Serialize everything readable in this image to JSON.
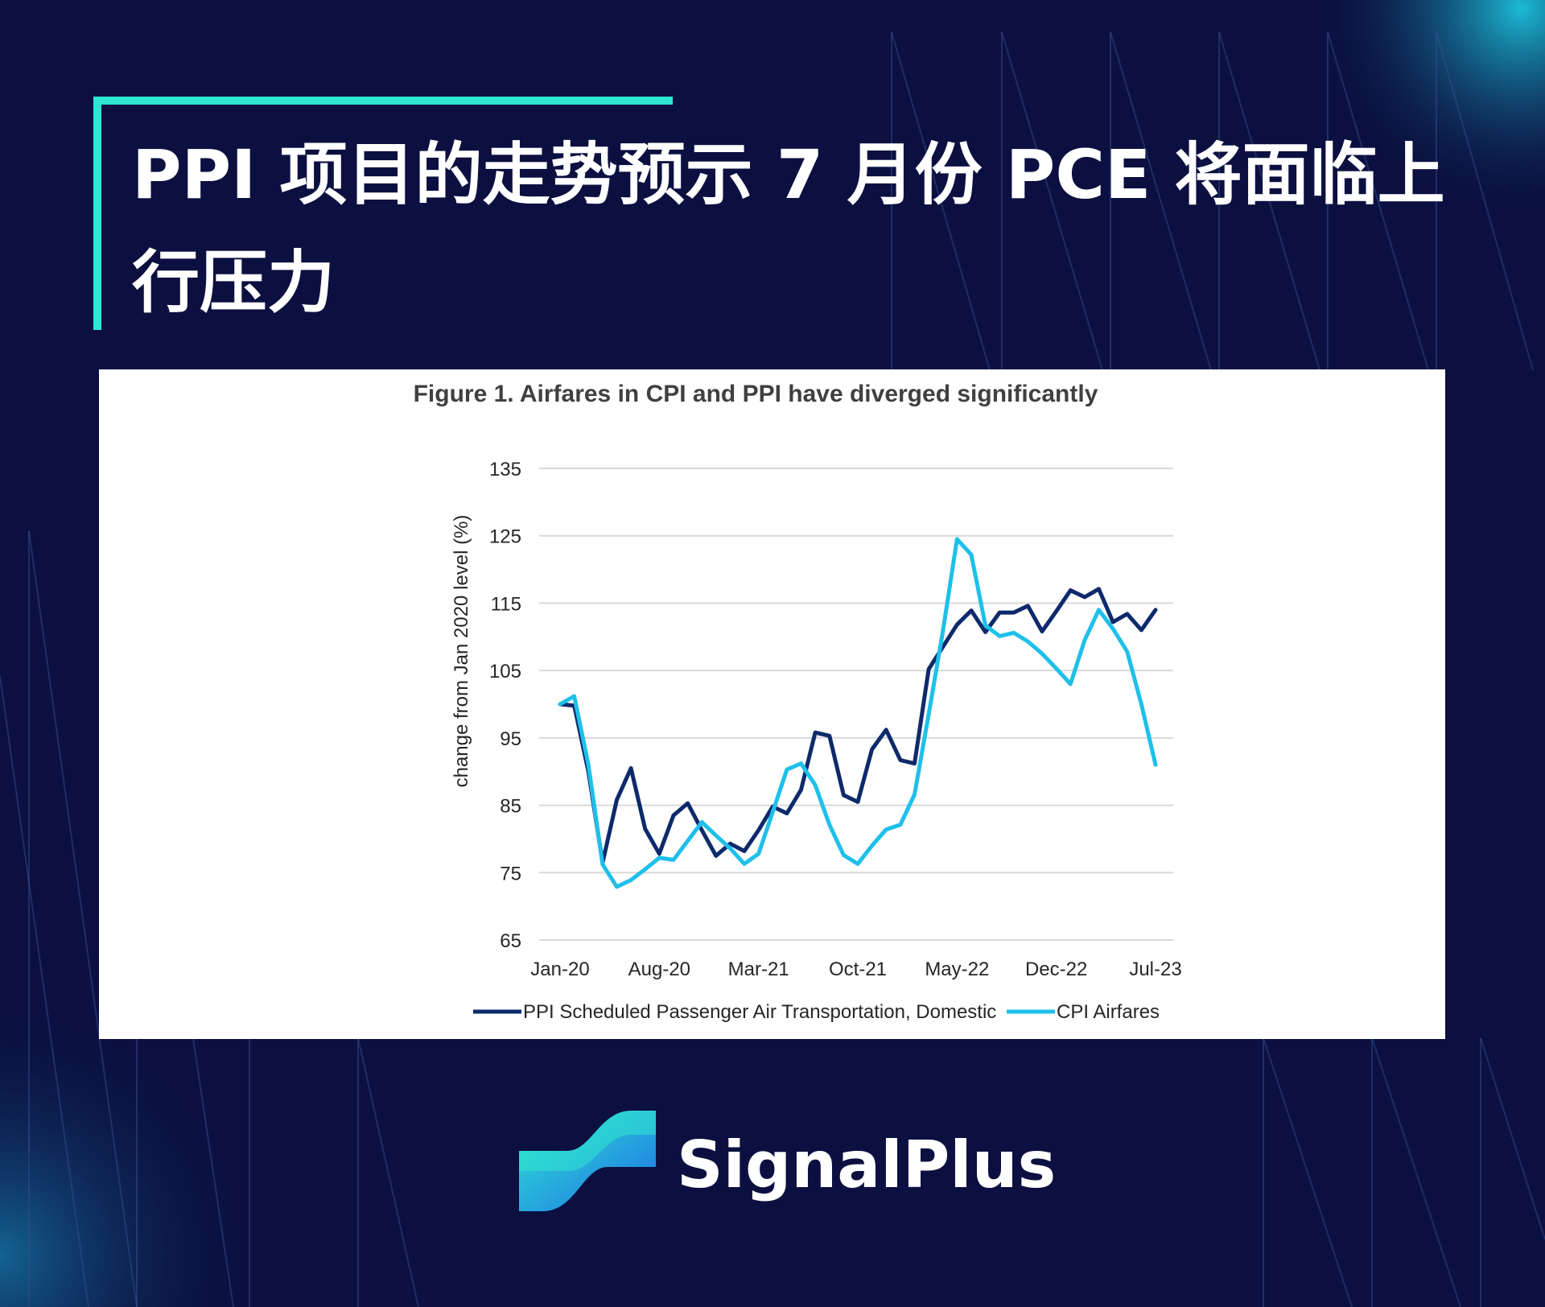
{
  "headline": {
    "text": "PPI 项目的走势预示 7 月份 PCE 将面临上行压力"
  },
  "brand": {
    "name": "SignalPlus",
    "accent_color": "#2ee6d2",
    "background_color": "#0b1040"
  },
  "chart_data": {
    "type": "line",
    "title": "Figure 1. Airfares in CPI and PPI have diverged significantly",
    "ylabel": "change from Jan 2020 level (%)",
    "xlabel": "",
    "ylim": [
      65,
      135
    ],
    "yticks": [
      "135",
      "125",
      "115",
      "105",
      "95",
      "85",
      "75",
      "65"
    ],
    "ytick_values": [
      135,
      125,
      115,
      105,
      95,
      85,
      75,
      65
    ],
    "xtick_labels": [
      "Jan-20",
      "Aug-20",
      "Mar-21",
      "Oct-21",
      "May-22",
      "Dec-22",
      "Jul-23"
    ],
    "xtick_indices": [
      0,
      7,
      14,
      21,
      28,
      35,
      42
    ],
    "x": [
      "2020-01",
      "2020-02",
      "2020-03",
      "2020-04",
      "2020-05",
      "2020-06",
      "2020-07",
      "2020-08",
      "2020-09",
      "2020-10",
      "2020-11",
      "2020-12",
      "2021-01",
      "2021-02",
      "2021-03",
      "2021-04",
      "2021-05",
      "2021-06",
      "2021-07",
      "2021-08",
      "2021-09",
      "2021-10",
      "2021-11",
      "2021-12",
      "2022-01",
      "2022-02",
      "2022-03",
      "2022-04",
      "2022-05",
      "2022-06",
      "2022-07",
      "2022-08",
      "2022-09",
      "2022-10",
      "2022-11",
      "2022-12",
      "2023-01",
      "2023-02",
      "2023-03",
      "2023-04",
      "2023-05",
      "2023-06",
      "2023-07"
    ],
    "grid": true,
    "legend_position": "bottom",
    "series": [
      {
        "name": "PPI Scheduled Passenger Air Transportation, Domestic",
        "color": "#0d2a6b",
        "values": [
          100,
          99.8,
          90,
          76.5,
          85.8,
          90.5,
          81.5,
          77.8,
          83.5,
          85.3,
          81.3,
          77.5,
          79.3,
          78.2,
          81.3,
          84.8,
          83.8,
          87.3,
          95.8,
          95.3,
          86.5,
          85.5,
          93.3,
          96.2,
          91.7,
          91.2,
          105.2,
          108.5,
          111.8,
          113.9,
          110.7,
          113.6,
          113.6,
          114.6,
          110.8,
          113.8,
          116.9,
          115.9,
          117.1,
          112.2,
          113.4,
          111,
          114
        ]
      },
      {
        "name": "CPI Airfares",
        "color": "#1ec0ea",
        "values": [
          100,
          101.2,
          91,
          76.2,
          72.9,
          73.9,
          75.5,
          77.2,
          76.9,
          79.7,
          82.5,
          80.5,
          78.6,
          76.3,
          77.8,
          84,
          90.3,
          91.2,
          88,
          82.1,
          77.6,
          76.3,
          79,
          81.4,
          82.1,
          86.6,
          98.5,
          110.8,
          124.5,
          122.2,
          111.7,
          110.1,
          110.6,
          109.3,
          107.5,
          105.3,
          103,
          109.5,
          114,
          111.2,
          107.8,
          100,
          91
        ]
      }
    ]
  }
}
